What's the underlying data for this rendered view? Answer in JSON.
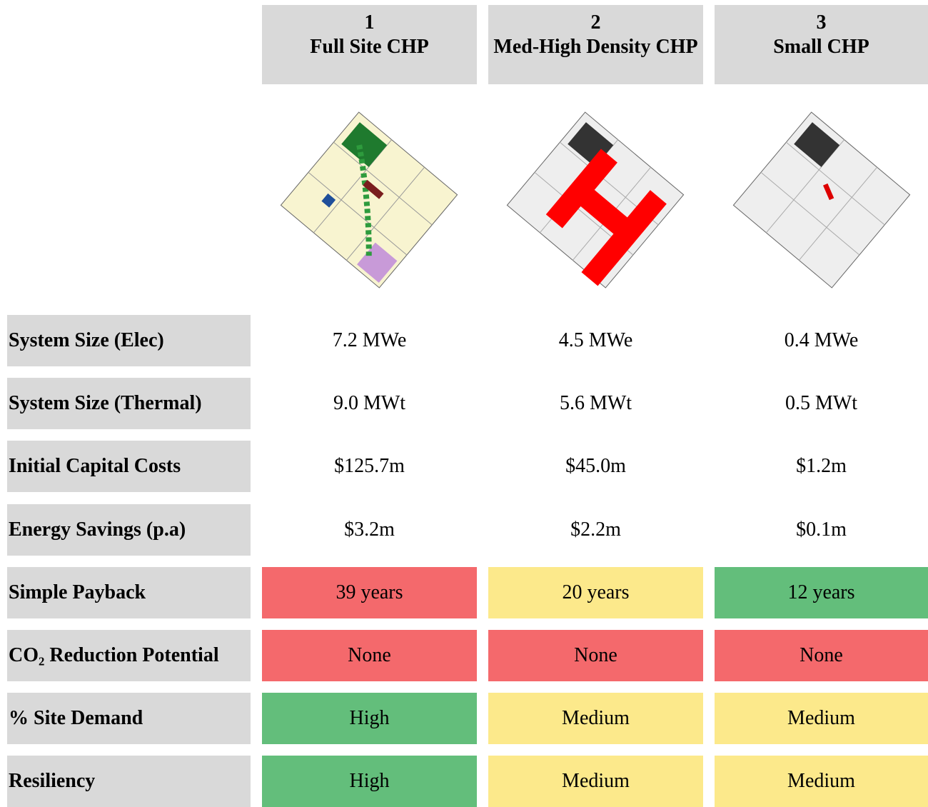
{
  "header": {
    "columns": [
      {
        "number": "1",
        "title": "Full Site CHP"
      },
      {
        "number": "2",
        "title": "Med-High Density CHP"
      },
      {
        "number": "3",
        "title": "Small CHP"
      }
    ]
  },
  "table": {
    "rows": [
      {
        "label": "System Size (Elec)",
        "cells": [
          {
            "text": "7.2 MWe"
          },
          {
            "text": "4.5 MWe"
          },
          {
            "text": "0.4 MWe"
          }
        ]
      },
      {
        "label": "System Size (Thermal)",
        "cells": [
          {
            "text": "9.0 MWt"
          },
          {
            "text": "5.6 MWt"
          },
          {
            "text": "0.5 MWt"
          }
        ]
      },
      {
        "label": "Initial Capital Costs",
        "cells": [
          {
            "text": "$125.7m"
          },
          {
            "text": "$45.0m"
          },
          {
            "text": "$1.2m"
          }
        ]
      },
      {
        "label": "Energy Savings (p.a)",
        "cells": [
          {
            "text": "$3.2m"
          },
          {
            "text": "$2.2m"
          },
          {
            "text": "$0.1m"
          }
        ]
      },
      {
        "label": "Simple Payback",
        "cells": [
          {
            "text": "39 years",
            "color": "#f4696c"
          },
          {
            "text": "20 years",
            "color": "#fce98b"
          },
          {
            "text": "12 years",
            "color": "#63be7b"
          }
        ]
      },
      {
        "label": "CO₂ Reduction Potential",
        "cells": [
          {
            "text": "None",
            "color": "#f4696c"
          },
          {
            "text": "None",
            "color": "#f4696c"
          },
          {
            "text": "None",
            "color": "#f4696c"
          }
        ]
      },
      {
        "label": "% Site Demand",
        "cells": [
          {
            "text": "High",
            "color": "#63be7b"
          },
          {
            "text": "Medium",
            "color": "#fce98b"
          },
          {
            "text": "Medium",
            "color": "#fce98b"
          }
        ]
      },
      {
        "label": "Resiliency",
        "cells": [
          {
            "text": "High",
            "color": "#63be7b"
          },
          {
            "text": "Medium",
            "color": "#fce98b"
          },
          {
            "text": "Medium",
            "color": "#fce98b"
          }
        ]
      }
    ]
  }
}
